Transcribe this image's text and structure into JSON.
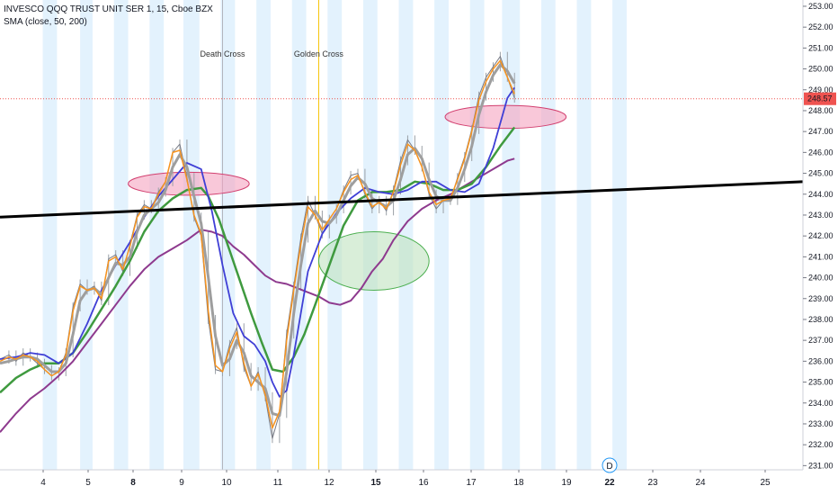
{
  "header": {
    "symbol_line": "INVESCO QQQ TRUST UNIT SER 1, 15, Cboe BZX",
    "indicator_line": "SMA (close, 50, 200)"
  },
  "colors": {
    "band": "#e3f2fd",
    "price": "#787b86",
    "sma_fast": "#f7931e",
    "sma_gray": "#9e9e9e",
    "sma_blue": "#3f3fd6",
    "sma_green": "#3f9a3f",
    "sma_purple": "#8e3a8e",
    "trendline": "#000000",
    "red_ellipse_fill": "#f5a3c0",
    "red_ellipse_stroke": "#d23f6f",
    "green_ellipse_fill": "#bfe3bf",
    "green_ellipse_stroke": "#4caf50",
    "death_line": "#b2b5be",
    "golden_line": "#f5c200",
    "price_line": "#ef5350"
  },
  "chart_data": {
    "type": "line",
    "title": "INVESCO QQQ TRUST UNIT SER 1, 15, Cboe BZX",
    "ylim": [
      230.8,
      253.3
    ],
    "xlim": [
      3.35,
      25.9
    ],
    "y_ticks": [
      "231.00",
      "232.00",
      "233.00",
      "234.00",
      "235.00",
      "236.00",
      "237.00",
      "238.00",
      "239.00",
      "240.00",
      "241.00",
      "242.00",
      "243.00",
      "244.00",
      "245.00",
      "246.00",
      "247.00",
      "248.00",
      "249.00",
      "250.00",
      "251.00",
      "252.00",
      "253.00"
    ],
    "x_ticks": [
      {
        "x": 4,
        "label": "4",
        "bold": false
      },
      {
        "x": 5,
        "label": "5",
        "bold": false
      },
      {
        "x": 6,
        "label": "8",
        "bold": true
      },
      {
        "x": 7,
        "label": "9",
        "bold": false
      },
      {
        "x": 8,
        "label": "10",
        "bold": false
      },
      {
        "x": 9,
        "label": "11",
        "bold": false
      },
      {
        "x": 10,
        "label": "12",
        "bold": false
      },
      {
        "x": 11,
        "label": "15",
        "bold": true
      },
      {
        "x": 12,
        "label": "16",
        "bold": false
      },
      {
        "x": 13,
        "label": "17",
        "bold": false
      },
      {
        "x": 14,
        "label": "18",
        "bold": false
      },
      {
        "x": 15,
        "label": "19",
        "bold": false
      },
      {
        "x": 16,
        "label": "22",
        "bold": true
      },
      {
        "x": 17,
        "label": "23",
        "bold": false
      },
      {
        "x": 18,
        "label": "24",
        "bold": false
      },
      {
        "x": 19,
        "label": "25",
        "bold": false
      }
    ],
    "session_bands": [
      [
        4.55,
        4.95
      ],
      [
        5.6,
        5.95
      ],
      [
        6.55,
        6.95
      ],
      [
        7.55,
        7.95
      ],
      [
        8.5,
        8.95
      ],
      [
        9.55,
        9.95
      ],
      [
        10.55,
        10.95
      ],
      [
        11.55,
        11.95
      ],
      [
        12.55,
        12.95
      ],
      [
        13.55,
        13.95
      ],
      [
        14.55,
        14.95
      ],
      [
        15.55,
        15.95
      ],
      [
        16.55,
        16.95
      ],
      [
        17.45,
        17.95
      ],
      [
        18.55,
        18.95
      ],
      [
        19.55,
        19.95
      ],
      [
        20.55,
        20.95
      ]
    ],
    "last_price": "248.57",
    "events": [
      {
        "label": "Death Cross",
        "x": 9.6
      },
      {
        "label": "Golden Cross",
        "x": 12.3
      }
    ],
    "dividend_marker": {
      "label": "D",
      "x": 16.0
    },
    "series": [
      {
        "name": "",
        "key": "price",
        "x": [
          3.35,
          3.6,
          3.8,
          4.0,
          4.2,
          4.4,
          4.6,
          4.8,
          5.0,
          5.2,
          5.4,
          5.6,
          5.8,
          6.0,
          6.2,
          6.4,
          6.6,
          6.8,
          7.0,
          7.2,
          7.4,
          7.6,
          7.8,
          8.0,
          8.2,
          8.4,
          8.6,
          8.8,
          9.0,
          9.2,
          9.4,
          9.6,
          9.8,
          10.0,
          10.2,
          10.4,
          10.6,
          10.8,
          11.0,
          11.2,
          11.4,
          11.6,
          11.8,
          12.0,
          12.2,
          12.4,
          12.6,
          12.8,
          13.0,
          13.2,
          13.4,
          13.6,
          13.8,
          14.0,
          14.2,
          14.4,
          14.6,
          14.8,
          15.0,
          15.2,
          15.4,
          15.6,
          15.8,
          16.0,
          16.2,
          16.4,
          16.6,
          16.8,
          17.0,
          17.2,
          17.4,
          17.6,
          17.8
        ],
        "y": [
          236.1,
          236.3,
          236.0,
          236.4,
          236.2,
          235.9,
          235.6,
          235.3,
          235.5,
          236.4,
          238.6,
          239.7,
          239.4,
          239.6,
          238.9,
          240.9,
          241.1,
          240.3,
          241.6,
          243.0,
          243.5,
          243.3,
          244.1,
          244.6,
          246.0,
          246.4,
          244.8,
          242.9,
          242.0,
          238.0,
          235.6,
          235.5,
          236.8,
          237.6,
          235.7,
          234.8,
          235.5,
          234.3,
          232.3,
          233.5,
          237.3,
          239.6,
          241.9,
          243.7,
          243.0,
          242.1,
          242.8,
          243.3,
          244.2,
          244.9,
          245.0,
          244.0,
          243.3,
          243.7,
          243.2,
          244.2,
          245.6,
          246.6,
          246.1,
          245.3,
          244.0,
          243.3,
          243.7,
          243.7,
          244.8,
          245.8,
          247.1,
          248.7,
          249.6,
          250.1,
          250.6,
          249.6,
          248.6
        ]
      },
      {
        "name": "",
        "key": "sma_fast",
        "x": [
          3.35,
          3.6,
          3.8,
          4.0,
          4.2,
          4.4,
          4.6,
          4.8,
          5.0,
          5.2,
          5.4,
          5.6,
          5.8,
          6.0,
          6.2,
          6.4,
          6.6,
          6.8,
          7.0,
          7.2,
          7.4,
          7.6,
          7.8,
          8.0,
          8.2,
          8.4,
          8.6,
          8.8,
          9.0,
          9.2,
          9.4,
          9.6,
          9.8,
          10.0,
          10.2,
          10.4,
          10.6,
          10.8,
          11.0,
          11.2,
          11.4,
          11.6,
          11.8,
          12.0,
          12.2,
          12.4,
          12.6,
          12.8,
          13.0,
          13.2,
          13.4,
          13.6,
          13.8,
          14.0,
          14.2,
          14.4,
          14.6,
          14.8,
          15.0,
          15.2,
          15.4,
          15.6,
          15.8,
          16.0,
          16.2,
          16.4,
          16.6,
          16.8,
          17.0,
          17.2,
          17.4,
          17.6,
          17.8
        ],
        "y": [
          236.0,
          236.2,
          236.1,
          236.3,
          236.2,
          236.0,
          235.6,
          235.3,
          235.5,
          236.3,
          238.4,
          239.6,
          239.4,
          239.5,
          239.0,
          240.8,
          241.0,
          240.4,
          241.5,
          242.9,
          243.4,
          243.3,
          244.0,
          244.6,
          246.0,
          246.1,
          244.7,
          243.0,
          242.1,
          238.4,
          235.8,
          235.5,
          236.6,
          237.4,
          235.9,
          234.8,
          235.4,
          234.4,
          232.8,
          233.6,
          237.0,
          239.4,
          241.6,
          243.4,
          243.0,
          242.3,
          242.8,
          243.3,
          244.1,
          244.7,
          244.9,
          244.1,
          243.4,
          243.6,
          243.3,
          244.1,
          245.4,
          246.4,
          246.1,
          245.3,
          244.1,
          243.5,
          243.7,
          243.8,
          244.7,
          245.7,
          247.0,
          248.5,
          249.4,
          250.0,
          250.4,
          249.6,
          248.8
        ]
      },
      {
        "name": "",
        "key": "sma_gray",
        "x": [
          3.35,
          3.6,
          3.8,
          4.0,
          4.2,
          4.4,
          4.6,
          4.8,
          5.0,
          5.2,
          5.4,
          5.6,
          5.8,
          6.0,
          6.2,
          6.4,
          6.6,
          6.8,
          7.0,
          7.2,
          7.4,
          7.6,
          7.8,
          8.0,
          8.2,
          8.4,
          8.6,
          8.8,
          9.0,
          9.2,
          9.4,
          9.6,
          9.8,
          10.0,
          10.2,
          10.4,
          10.6,
          10.8,
          11.0,
          11.2,
          11.4,
          11.6,
          11.8,
          12.0,
          12.2,
          12.4,
          12.6,
          12.8,
          13.0,
          13.2,
          13.4,
          13.6,
          13.8,
          14.0,
          14.2,
          14.4,
          14.6,
          14.8,
          15.0,
          15.2,
          15.4,
          15.6,
          15.8,
          16.0,
          16.2,
          16.4,
          16.6,
          16.8,
          17.0,
          17.2,
          17.4,
          17.6,
          17.8
        ],
        "y": [
          235.9,
          236.0,
          236.1,
          236.2,
          236.2,
          236.1,
          235.8,
          235.5,
          235.5,
          235.9,
          237.3,
          238.9,
          239.4,
          239.5,
          239.2,
          240.0,
          240.7,
          240.6,
          241.0,
          242.2,
          243.0,
          243.3,
          243.6,
          244.2,
          245.3,
          245.9,
          245.3,
          243.9,
          242.6,
          240.0,
          237.2,
          235.8,
          236.1,
          237.0,
          236.4,
          235.3,
          235.0,
          234.7,
          233.5,
          233.4,
          235.5,
          238.3,
          240.6,
          242.6,
          243.2,
          242.7,
          242.6,
          243.0,
          243.7,
          244.4,
          244.8,
          244.5,
          243.8,
          243.6,
          243.4,
          243.7,
          244.7,
          245.9,
          246.2,
          245.7,
          244.7,
          243.9,
          243.7,
          243.7,
          244.3,
          245.2,
          246.3,
          247.8,
          248.9,
          249.7,
          250.2,
          249.9,
          249.3
        ]
      },
      {
        "name": "",
        "key": "sma_blue",
        "x": [
          3.35,
          3.8,
          4.2,
          4.6,
          5.0,
          5.4,
          5.8,
          6.2,
          6.6,
          7.0,
          7.4,
          7.8,
          8.2,
          8.6,
          9.0,
          9.3,
          9.6,
          9.9,
          10.2,
          10.5,
          10.8,
          11.0,
          11.2,
          11.4,
          11.6,
          11.8,
          12.0,
          12.4,
          12.8,
          13.2,
          13.6,
          14.0,
          14.4,
          14.8,
          15.2,
          15.6,
          16.0,
          16.4,
          16.8,
          17.2,
          17.6,
          17.8
        ],
        "y": [
          236.1,
          236.2,
          236.4,
          236.3,
          235.9,
          236.4,
          237.8,
          239.4,
          240.6,
          241.7,
          242.9,
          243.9,
          244.7,
          245.5,
          245.2,
          243.2,
          240.6,
          238.3,
          237.2,
          236.8,
          236.0,
          235.0,
          234.3,
          234.6,
          236.3,
          238.3,
          240.3,
          242.1,
          243.1,
          243.8,
          244.3,
          244.1,
          244.0,
          244.2,
          244.6,
          244.6,
          244.2,
          244.1,
          244.5,
          246.2,
          248.6,
          249.1
        ]
      },
      {
        "name": "",
        "key": "sma_green",
        "x": [
          3.35,
          3.8,
          4.2,
          4.6,
          5.0,
          5.4,
          5.8,
          6.2,
          6.6,
          7.0,
          7.4,
          7.8,
          8.2,
          8.6,
          9.0,
          9.2,
          9.5,
          9.8,
          10.1,
          10.4,
          10.7,
          11.0,
          11.3,
          11.6,
          11.9,
          12.2,
          12.6,
          13.0,
          13.4,
          13.8,
          14.2,
          14.6,
          15.0,
          15.4,
          15.8,
          16.2,
          16.6,
          17.0,
          17.4,
          17.8
        ],
        "y": [
          234.5,
          235.2,
          235.6,
          235.9,
          235.9,
          236.4,
          237.4,
          238.5,
          239.6,
          240.8,
          242.2,
          243.2,
          243.8,
          244.2,
          244.3,
          243.9,
          242.8,
          241.3,
          239.8,
          238.3,
          236.9,
          235.6,
          235.5,
          236.2,
          237.3,
          238.7,
          240.6,
          242.5,
          243.7,
          244.1,
          244.1,
          244.2,
          244.6,
          244.5,
          244.2,
          244.2,
          244.5,
          245.3,
          246.3,
          247.2
        ]
      },
      {
        "name": "",
        "key": "sma_purple",
        "x": [
          3.35,
          3.8,
          4.2,
          4.6,
          5.0,
          5.4,
          5.8,
          6.2,
          6.6,
          7.0,
          7.4,
          7.8,
          8.2,
          8.6,
          9.0,
          9.3,
          9.6,
          9.9,
          10.2,
          10.5,
          10.8,
          11.1,
          11.4,
          11.7,
          12.0,
          12.3,
          12.6,
          12.9,
          13.2,
          13.5,
          13.8,
          14.1,
          14.4,
          14.8,
          15.2,
          15.6,
          16.0,
          16.4,
          16.8,
          17.2,
          17.6,
          17.8
        ],
        "y": [
          232.6,
          233.5,
          234.2,
          234.7,
          235.3,
          236.0,
          236.9,
          237.8,
          238.7,
          239.6,
          240.4,
          241.0,
          241.4,
          241.8,
          242.3,
          242.2,
          242.0,
          241.5,
          241.1,
          240.6,
          240.1,
          239.8,
          239.7,
          239.5,
          239.3,
          239.1,
          238.8,
          238.7,
          238.9,
          239.5,
          240.3,
          240.9,
          241.8,
          242.7,
          243.3,
          243.7,
          244.0,
          244.4,
          244.8,
          245.2,
          245.6,
          245.7
        ]
      }
    ],
    "trendline": {
      "x": [
        3.35,
        25.9
      ],
      "y": [
        242.9,
        244.6
      ]
    },
    "ellipses": [
      {
        "kind": "red",
        "cx": 8.65,
        "cy": 244.5,
        "rx": 1.7,
        "ry": 0.55
      },
      {
        "kind": "green",
        "cx": 13.85,
        "cy": 240.8,
        "rx": 1.55,
        "ry": 1.4
      },
      {
        "kind": "red",
        "cx": 17.55,
        "cy": 247.7,
        "rx": 1.7,
        "ry": 0.55
      }
    ]
  }
}
